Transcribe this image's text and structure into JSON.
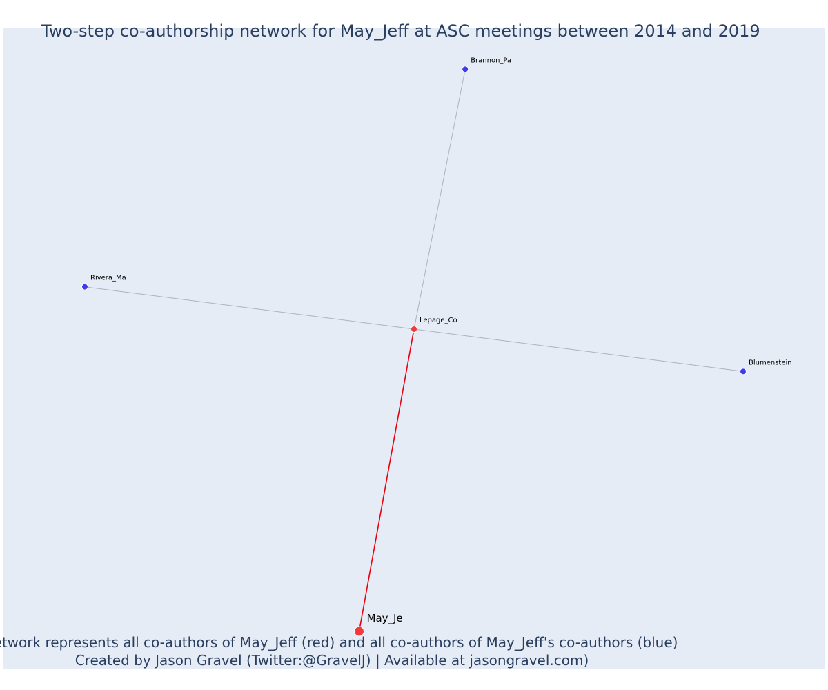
{
  "title": "Two-step co-authorship network for May_Jeff at ASC meetings between 2014 and 2019",
  "caption": {
    "line1": "Network represents all co-authors of May_Jeff (red) and all co-authors of May_Jeff's co-authors (blue)",
    "line2": "Created by Jason Gravel (Twitter:@GravelJ) | Available at jasongravel.com)"
  },
  "colors": {
    "plot_background": "#e5ecf6",
    "ego_node": "#ef3b3b",
    "first_step_node": "#ef3b3b",
    "second_step_node": "#3b3bef",
    "ego_edge": "#e8000b",
    "other_edge": "#b0b0bb",
    "text": "#2a3f5f"
  },
  "chart_data": {
    "type": "network",
    "xlim": [
      -1.0,
      1.0
    ],
    "ylim": [
      -1.0,
      1.0
    ],
    "grid": false,
    "nodes": [
      {
        "id": "May_Je",
        "label": "May_Je",
        "group": "ego",
        "x": -0.15,
        "y": -1.0
      },
      {
        "id": "Lepage_Co",
        "label": "Lepage_Co",
        "group": "co-author",
        "x": 0.0,
        "y": -0.0
      },
      {
        "id": "Brannon_Pa",
        "label": "Brannon_Pa",
        "group": "co-author-of-co-author",
        "x": 0.14,
        "y": 0.86
      },
      {
        "id": "Rivera_Ma",
        "label": "Rivera_Ma",
        "group": "co-author-of-co-author",
        "x": -0.9,
        "y": 0.14
      },
      {
        "id": "Blumenstein",
        "label": "Blumenstein",
        "group": "co-author-of-co-author",
        "x": 0.9,
        "y": -0.14
      }
    ],
    "edges": [
      {
        "source": "May_Je",
        "target": "Lepage_Co",
        "type": "ego"
      },
      {
        "source": "Lepage_Co",
        "target": "Brannon_Pa",
        "type": "other"
      },
      {
        "source": "Lepage_Co",
        "target": "Rivera_Ma",
        "type": "other"
      },
      {
        "source": "Lepage_Co",
        "target": "Blumenstein",
        "type": "other"
      }
    ]
  }
}
